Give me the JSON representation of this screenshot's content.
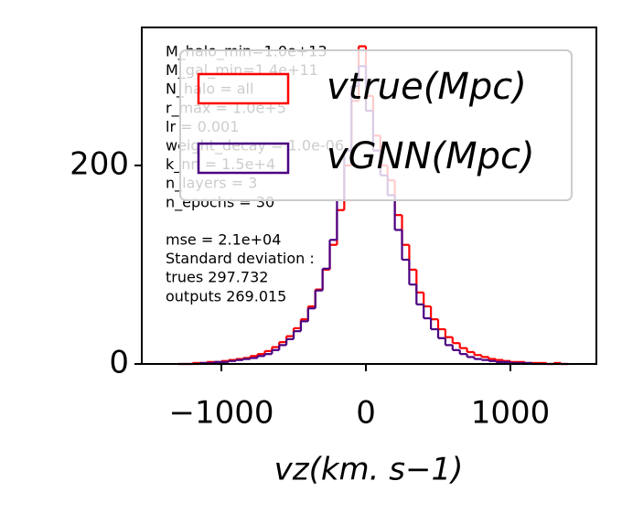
{
  "chart_data": {
    "type": "histogram",
    "xlabel": "vz(km. s−1)",
    "bins": [
      -1300,
      -1250,
      -1200,
      -1150,
      -1100,
      -1050,
      -1000,
      -950,
      -900,
      -850,
      -800,
      -750,
      -700,
      -650,
      -600,
      -550,
      -500,
      -450,
      -400,
      -350,
      -300,
      -250,
      -200,
      -150,
      -100,
      -50,
      0,
      50,
      100,
      150,
      200,
      250,
      300,
      350,
      400,
      450,
      500,
      550,
      600,
      650,
      700,
      750,
      800,
      850,
      900,
      950,
      1000,
      1050,
      1100,
      1150,
      1200,
      1250,
      1300,
      1350,
      1400
    ],
    "series": [
      {
        "name": "vtrue(Mpc)",
        "color": "#ff0000",
        "values": [
          0,
          0,
          1,
          1,
          2,
          2,
          3,
          4,
          5,
          6,
          8,
          10,
          13,
          17,
          22,
          28,
          36,
          45,
          58,
          75,
          95,
          120,
          155,
          200,
          265,
          320,
          270,
          230,
          200,
          185,
          150,
          120,
          95,
          72,
          58,
          45,
          35,
          27,
          21,
          16,
          12,
          9,
          7,
          5,
          4,
          3,
          2,
          2,
          1,
          1,
          1,
          0,
          1,
          0
        ]
      },
      {
        "name": "vGNN(Mpc)",
        "color": "#4b0082",
        "values": [
          0,
          0,
          0,
          1,
          1,
          2,
          2,
          3,
          4,
          5,
          6,
          8,
          10,
          14,
          19,
          25,
          33,
          43,
          56,
          74,
          96,
          125,
          165,
          215,
          280,
          300,
          255,
          215,
          190,
          170,
          135,
          105,
          80,
          60,
          46,
          35,
          26,
          19,
          14,
          10,
          7,
          5,
          4,
          3,
          2,
          2,
          1,
          1,
          1,
          0,
          0,
          0,
          0,
          0
        ]
      }
    ],
    "xlim": [
      -1551,
      1595
    ],
    "ylim": [
      0,
      339
    ],
    "xticks": [
      {
        "value": -1000,
        "label": "−1000"
      },
      0,
      1000
    ],
    "yticks": [
      0,
      200
    ],
    "legend": "upper right",
    "annotation": [
      [
        "M_halo_min=1.0e+13",
        "M_gal_min=1.4e+11",
        "N_halo = all",
        "r_max = 1.0e+5",
        "lr = 0.001",
        "weight_decay = 1.0e-06",
        "k_nn = 1.5e+4",
        "n_layers = 3",
        "n_epochs = 30"
      ],
      [
        "mse = 2.1e+04",
        "Standard deviation :",
        "trues 297.732",
        "outputs 269.015"
      ]
    ]
  }
}
